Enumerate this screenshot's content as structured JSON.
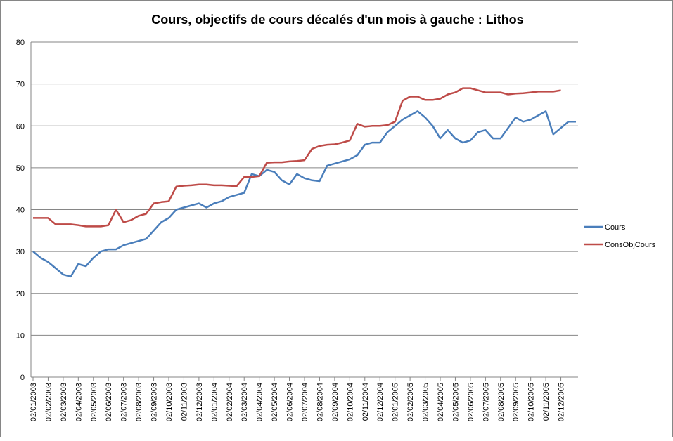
{
  "chart_data": {
    "type": "line",
    "title": "Cours, objectifs de cours décalés d'un mois à gauche : Lithos",
    "categories": [
      "02/01/2003",
      null,
      "02/02/2003",
      null,
      "02/03/2003",
      null,
      "02/04/2003",
      null,
      "02/05/2003",
      null,
      "02/06/2003",
      null,
      "02/07/2003",
      null,
      "02/08/2003",
      null,
      "02/09/2003",
      null,
      "02/10/2003",
      null,
      "02/11/2003",
      null,
      "02/12/2003",
      null,
      "02/01/2004",
      null,
      "02/02/2004",
      null,
      "02/03/2004",
      null,
      "02/04/2004",
      null,
      "02/05/2004",
      null,
      "02/06/2004",
      null,
      "02/07/2004",
      null,
      "02/08/2004",
      null,
      "02/09/2004",
      null,
      "02/10/2004",
      null,
      "02/11/2004",
      null,
      "02/12/2004",
      null,
      "02/01/2005",
      null,
      "02/02/2005",
      null,
      "02/03/2005",
      null,
      "02/04/2005",
      null,
      "02/05/2005",
      null,
      "02/06/2005",
      null,
      "02/07/2005",
      null,
      "02/08/2005",
      null,
      "02/09/2005",
      null,
      "02/10/2005",
      null,
      "02/11/2005",
      null,
      "02/12/2005",
      null,
      null
    ],
    "series": [
      {
        "name": "Cours",
        "color": "#4a7ebb",
        "values": [
          30,
          28.5,
          27.5,
          26,
          24.5,
          24,
          27,
          26.5,
          28.5,
          30,
          30.5,
          30.5,
          31.5,
          32,
          32.5,
          33,
          35,
          37,
          38,
          40,
          40.5,
          41,
          41.5,
          40.5,
          41.5,
          42,
          43,
          43.5,
          44,
          48.5,
          48,
          49.5,
          49,
          47,
          46,
          48.5,
          47.5,
          47,
          46.8,
          50.5,
          51,
          51.5,
          52,
          53,
          55.5,
          56,
          56,
          58.5,
          60,
          61.5,
          62.5,
          63.5,
          62,
          60,
          57,
          59,
          57,
          56,
          56.5,
          58.5,
          59,
          57,
          57,
          59.5,
          62,
          61,
          61.5,
          62.5,
          63.5,
          58,
          59.5,
          61,
          61
        ]
      },
      {
        "name": "ConsObjCours",
        "color": "#be4b48",
        "values": [
          38,
          38,
          38,
          36.5,
          36.5,
          36.5,
          36.3,
          36,
          36,
          36,
          36.3,
          40,
          37,
          37.5,
          38.5,
          39,
          41.5,
          41.8,
          42,
          45.5,
          45.7,
          45.8,
          46,
          46,
          45.8,
          45.8,
          45.7,
          45.6,
          47.8,
          47.8,
          48,
          51.2,
          51.3,
          51.3,
          51.5,
          51.6,
          51.8,
          54.5,
          55.2,
          55.5,
          55.6,
          56,
          56.5,
          60.5,
          59.8,
          60,
          60,
          60.2,
          61,
          66,
          67,
          67,
          66.2,
          66.2,
          66.5,
          67.5,
          68,
          69,
          69,
          68.5,
          68,
          68,
          68,
          67.5,
          67.7,
          67.8,
          68,
          68.2,
          68.2,
          68.2,
          68.5,
          null,
          null
        ]
      }
    ],
    "ylim": [
      0,
      80
    ],
    "yticks": [
      0,
      10,
      20,
      30,
      40,
      50,
      60,
      70,
      80
    ],
    "grid": true,
    "legend": "right"
  }
}
